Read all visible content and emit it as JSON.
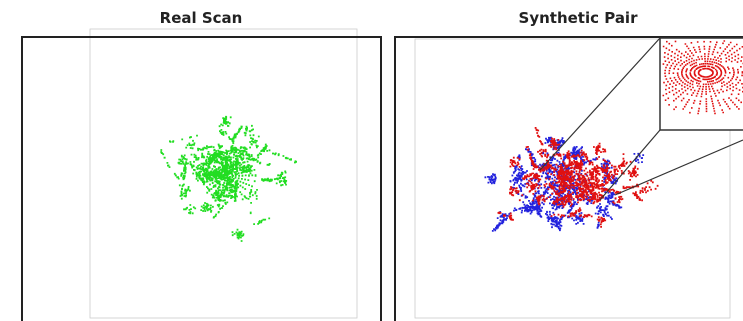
{
  "panels": [
    {
      "title": "Real Scan"
    },
    {
      "title": "Synthetic Pair"
    }
  ]
}
